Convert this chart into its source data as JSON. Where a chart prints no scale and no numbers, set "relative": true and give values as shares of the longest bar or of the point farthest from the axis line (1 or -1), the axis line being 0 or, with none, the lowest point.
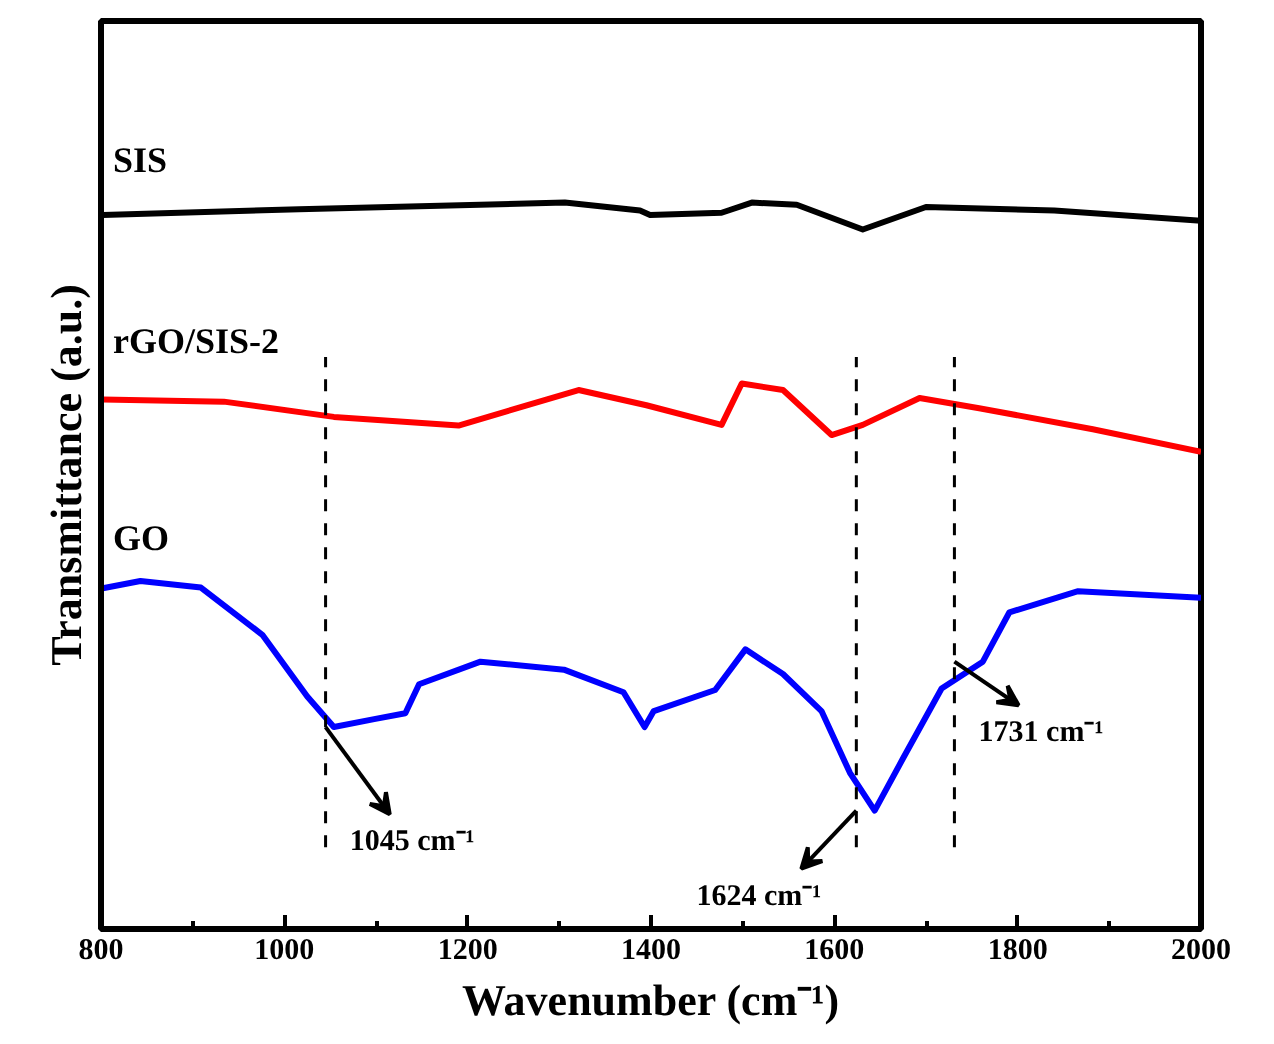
{
  "chart_data": {
    "type": "line",
    "relative": true,
    "xlabel": "Wavenumber (cm⁻¹)",
    "ylabel": "Transmittance (a.u.)",
    "xlim": [
      800,
      2000
    ],
    "xticks": [
      800,
      1000,
      1200,
      1400,
      1600,
      1800,
      2000
    ],
    "tick_labels": "x",
    "grid": false,
    "line_style": "solid",
    "marker": "none",
    "series": [
      {
        "name": "SIS",
        "color": "#000000",
        "x": [
          802,
          1016,
          1306,
          1388,
          1399,
          1477,
          1510,
          1559,
          1631,
          1700,
          1840,
          2000
        ],
        "values": [
          0.983,
          0.991,
          1.0,
          0.989,
          0.983,
          0.986,
          1.0,
          0.997,
          0.963,
          0.994,
          0.989,
          0.975
        ]
      },
      {
        "name": "rGO/SIS-2",
        "color": "#ff0000",
        "x": [
          802,
          934,
          1054,
          1190,
          1321,
          1395,
          1477,
          1499,
          1544,
          1597,
          1631,
          1693,
          1758,
          1882,
          2000
        ],
        "values": [
          0.729,
          0.726,
          0.705,
          0.693,
          0.742,
          0.721,
          0.694,
          0.751,
          0.742,
          0.68,
          0.694,
          0.731,
          0.717,
          0.688,
          0.657
        ]
      },
      {
        "name": "GO",
        "color": "#0000ff",
        "x": [
          802,
          843,
          909,
          976,
          1025,
          1054,
          1098,
          1132,
          1147,
          1214,
          1305,
          1370,
          1393,
          1403,
          1470,
          1503,
          1544,
          1586,
          1617,
          1644,
          1675,
          1717,
          1762,
          1791,
          1866,
          2000
        ],
        "values": [
          0.469,
          0.479,
          0.47,
          0.405,
          0.32,
          0.278,
          0.289,
          0.297,
          0.337,
          0.368,
          0.357,
          0.326,
          0.278,
          0.3,
          0.329,
          0.385,
          0.351,
          0.3,
          0.215,
          0.163,
          0.235,
          0.331,
          0.368,
          0.436,
          0.465,
          0.456
        ]
      }
    ],
    "ref_lines": [
      {
        "axis": "x",
        "value": 1045,
        "color": "#000000",
        "line_style": "dashed"
      },
      {
        "axis": "x",
        "value": 1624,
        "color": "#000000",
        "line_style": "dashed"
      },
      {
        "axis": "x",
        "value": 1731,
        "color": "#000000",
        "line_style": "dashed"
      }
    ],
    "annotations": [
      {
        "text": "1045 cm⁻¹",
        "x": 1045,
        "y": 0.278
      },
      {
        "text": "1624 cm⁻¹",
        "x": 1624,
        "y": 0.163
      },
      {
        "text": "1731 cm⁻¹",
        "x": 1731,
        "y": 0.368
      }
    ]
  }
}
